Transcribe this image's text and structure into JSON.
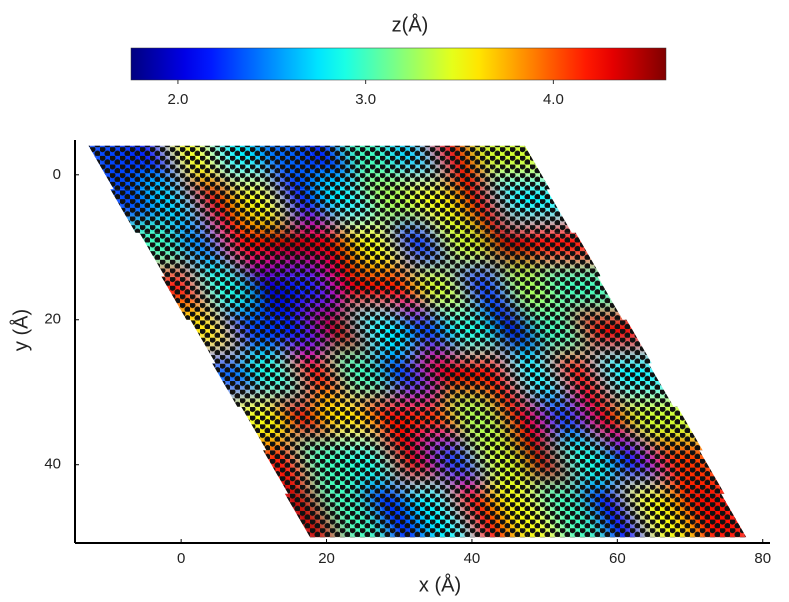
{
  "chart_data": {
    "type": "heatmap",
    "title": "z(Å)",
    "xlabel": "x (Å)",
    "ylabel": "y (Å)",
    "colormap": "jet",
    "clim": [
      1.75,
      4.6
    ],
    "cticks": [
      {
        "value": 2,
        "label": "2.0"
      },
      {
        "value": 3,
        "label": "3.0"
      },
      {
        "value": 4,
        "label": "4.0"
      }
    ],
    "xlim": [
      -14.6,
      81
    ],
    "ylim": [
      -4.8,
      50.8
    ],
    "y_inverted": true,
    "xticks": [
      0,
      20,
      40,
      60,
      80
    ],
    "yticks": [
      0,
      20,
      40
    ],
    "x": [
      -8,
      -2,
      4,
      10,
      16,
      22,
      28,
      34,
      40,
      46,
      -5,
      1,
      7,
      13,
      19,
      25,
      31,
      37,
      43,
      49,
      -1,
      5,
      11,
      17,
      23,
      29,
      35,
      41,
      47,
      53,
      2,
      8,
      14,
      20,
      26,
      32,
      38,
      44,
      50,
      56,
      6,
      12,
      18,
      24,
      30,
      36,
      42,
      48,
      54,
      60,
      9,
      15,
      21,
      27,
      33,
      39,
      45,
      51,
      57,
      63,
      13,
      19,
      25,
      31,
      37,
      43,
      49,
      55,
      61,
      67,
      16,
      22,
      28,
      34,
      40,
      46,
      52,
      58,
      64,
      70,
      19,
      25,
      31,
      37,
      43,
      49,
      55,
      61,
      67,
      73
    ],
    "y": [
      -1,
      -1,
      -1,
      -1,
      -1,
      -1,
      -1,
      -1,
      -1,
      -1,
      5,
      5,
      5,
      5,
      5,
      5,
      5,
      5,
      5,
      5,
      11,
      11,
      11,
      11,
      11,
      11,
      11,
      11,
      11,
      11,
      17,
      17,
      17,
      17,
      17,
      17,
      17,
      17,
      17,
      17,
      23,
      23,
      23,
      23,
      23,
      23,
      23,
      23,
      23,
      23,
      29,
      29,
      29,
      29,
      29,
      29,
      29,
      29,
      29,
      29,
      35,
      35,
      35,
      35,
      35,
      35,
      35,
      35,
      35,
      35,
      41,
      41,
      41,
      41,
      41,
      41,
      41,
      41,
      41,
      41,
      47,
      47,
      47,
      47,
      47,
      47,
      47,
      47,
      47,
      47
    ],
    "values": [
      2.3,
      2.2,
      3.5,
      2.8,
      2.4,
      2.2,
      3.0,
      2.7,
      4.3,
      3.4,
      2.3,
      2.7,
      4.3,
      3.5,
      2.2,
      2.8,
      3.3,
      3.5,
      4.3,
      2.8,
      3.0,
      2.5,
      4.2,
      4.4,
      4.3,
      3.5,
      2.3,
      3.4,
      4.4,
      4.2,
      4.2,
      2.9,
      2.0,
      2.2,
      4.3,
      4.2,
      3.4,
      2.3,
      3.3,
      3.0,
      3.6,
      2.3,
      2.2,
      4.4,
      2.8,
      2.3,
      2.9,
      2.0,
      3.0,
      4.3,
      2.4,
      2.9,
      4.2,
      3.0,
      2.3,
      4.3,
      4.2,
      2.8,
      4.2,
      2.8,
      3.5,
      4.3,
      3.6,
      4.2,
      4.1,
      3.3,
      4.3,
      2.3,
      4.3,
      3.4,
      4.2,
      3.0,
      2.9,
      4.3,
      2.3,
      3.4,
      4.4,
      2.9,
      2.2,
      4.1,
      4.4,
      3.0,
      2.2,
      2.8,
      4.2,
      3.5,
      3.0,
      2.1,
      3.5,
      4.2
    ]
  }
}
